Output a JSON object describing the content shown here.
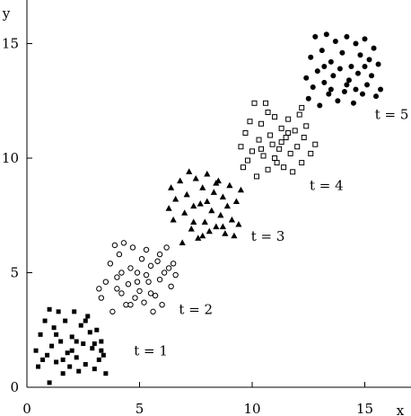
{
  "chart_data": {
    "type": "scatter",
    "xlabel": "x",
    "ylabel": "y",
    "xlim": [
      0,
      17
    ],
    "ylim": [
      0,
      17
    ],
    "xticks": [
      0,
      5,
      10,
      15
    ],
    "yticks": [
      0,
      5,
      10,
      15
    ],
    "tick_labels_x": [
      "0",
      "5",
      "10",
      "15"
    ],
    "tick_labels_y": [
      "0",
      "5",
      "10",
      "15"
    ],
    "grid": false,
    "series": [
      {
        "name": "t = 1",
        "marker": "filled-square",
        "label_position": [
          5.5,
          1.4
        ],
        "points": [
          [
            0.4,
            1.6
          ],
          [
            0.5,
            0.9
          ],
          [
            0.6,
            2.3
          ],
          [
            0.8,
            2.9
          ],
          [
            0.9,
            1.4
          ],
          [
            1.0,
            0.2
          ],
          [
            1.0,
            3.4
          ],
          [
            1.1,
            1.8
          ],
          [
            1.2,
            2.6
          ],
          [
            1.3,
            1.1
          ],
          [
            1.4,
            3.3
          ],
          [
            1.5,
            2.0
          ],
          [
            1.6,
            0.6
          ],
          [
            1.7,
            2.9
          ],
          [
            1.8,
            1.5
          ],
          [
            1.9,
            0.9
          ],
          [
            2.0,
            2.2
          ],
          [
            2.1,
            3.3
          ],
          [
            2.2,
            1.3
          ],
          [
            2.3,
            0.7
          ],
          [
            2.4,
            2.7
          ],
          [
            2.5,
            1.9
          ],
          [
            2.6,
            1.0
          ],
          [
            2.7,
            3.1
          ],
          [
            2.8,
            2.4
          ],
          [
            2.9,
            1.7
          ],
          [
            3.0,
            0.8
          ],
          [
            3.1,
            2.5
          ],
          [
            3.2,
            1.2
          ],
          [
            3.3,
            2.0
          ],
          [
            3.4,
            1.4
          ],
          [
            3.5,
            0.6
          ],
          [
            0.7,
            1.2
          ],
          [
            1.3,
            2.3
          ],
          [
            2.0,
            1.6
          ],
          [
            2.6,
            2.9
          ],
          [
            3.0,
            1.9
          ],
          [
            1.6,
            1.2
          ],
          [
            2.2,
            2.0
          ],
          [
            3.3,
            1.6
          ]
        ]
      },
      {
        "name": "t = 2",
        "marker": "open-circle",
        "label_position": [
          7.5,
          3.2
        ],
        "points": [
          [
            3.2,
            4.3
          ],
          [
            3.3,
            3.9
          ],
          [
            3.5,
            4.6
          ],
          [
            3.7,
            5.4
          ],
          [
            3.8,
            3.3
          ],
          [
            3.9,
            6.2
          ],
          [
            4.0,
            4.8
          ],
          [
            4.1,
            5.8
          ],
          [
            4.2,
            4.1
          ],
          [
            4.3,
            6.3
          ],
          [
            4.4,
            3.6
          ],
          [
            4.5,
            4.5
          ],
          [
            4.6,
            5.2
          ],
          [
            4.7,
            6.1
          ],
          [
            4.8,
            3.9
          ],
          [
            4.9,
            5.0
          ],
          [
            5.0,
            4.2
          ],
          [
            5.1,
            5.6
          ],
          [
            5.2,
            3.7
          ],
          [
            5.3,
            6.0
          ],
          [
            5.4,
            4.6
          ],
          [
            5.5,
            5.3
          ],
          [
            5.6,
            3.3
          ],
          [
            5.7,
            4.0
          ],
          [
            5.8,
            5.5
          ],
          [
            5.9,
            4.7
          ],
          [
            6.0,
            3.6
          ],
          [
            6.1,
            5.0
          ],
          [
            6.2,
            6.1
          ],
          [
            6.4,
            4.4
          ],
          [
            6.5,
            5.4
          ],
          [
            6.6,
            4.9
          ],
          [
            4.0,
            4.3
          ],
          [
            4.6,
            3.6
          ],
          [
            5.3,
            4.9
          ],
          [
            5.9,
            5.8
          ],
          [
            4.9,
            4.6
          ],
          [
            5.5,
            4.1
          ],
          [
            6.3,
            5.2
          ],
          [
            4.2,
            5.0
          ]
        ]
      },
      {
        "name": "t = 3",
        "marker": "filled-triangle",
        "label_position": [
          10.7,
          6.4
        ],
        "points": [
          [
            6.3,
            7.8
          ],
          [
            6.4,
            8.7
          ],
          [
            6.5,
            7.3
          ],
          [
            6.6,
            8.2
          ],
          [
            6.8,
            9.0
          ],
          [
            6.9,
            6.3
          ],
          [
            7.0,
            7.6
          ],
          [
            7.1,
            8.4
          ],
          [
            7.2,
            9.4
          ],
          [
            7.3,
            6.9
          ],
          [
            7.4,
            7.9
          ],
          [
            7.5,
            9.1
          ],
          [
            7.6,
            6.5
          ],
          [
            7.7,
            8.0
          ],
          [
            7.8,
            8.7
          ],
          [
            7.9,
            7.2
          ],
          [
            8.0,
            9.3
          ],
          [
            8.1,
            6.8
          ],
          [
            8.2,
            7.7
          ],
          [
            8.3,
            8.5
          ],
          [
            8.4,
            7.0
          ],
          [
            8.5,
            9.0
          ],
          [
            8.6,
            7.5
          ],
          [
            8.7,
            8.3
          ],
          [
            8.8,
            6.7
          ],
          [
            8.9,
            7.9
          ],
          [
            9.0,
            8.8
          ],
          [
            9.1,
            7.3
          ],
          [
            9.2,
            6.6
          ],
          [
            9.3,
            8.1
          ],
          [
            9.4,
            7.1
          ],
          [
            9.5,
            8.6
          ],
          [
            7.4,
            7.2
          ],
          [
            8.0,
            8.1
          ],
          [
            8.7,
            7.0
          ],
          [
            7.8,
            6.6
          ],
          [
            8.4,
            8.9
          ]
        ]
      },
      {
        "name": "t = 4",
        "marker": "open-square",
        "label_position": [
          13.3,
          8.6
        ],
        "points": [
          [
            9.5,
            10.5
          ],
          [
            9.6,
            9.6
          ],
          [
            9.7,
            11.1
          ],
          [
            9.8,
            9.9
          ],
          [
            9.9,
            11.6
          ],
          [
            10.0,
            10.3
          ],
          [
            10.1,
            12.4
          ],
          [
            10.2,
            9.2
          ],
          [
            10.3,
            10.8
          ],
          [
            10.4,
            11.5
          ],
          [
            10.5,
            10.1
          ],
          [
            10.6,
            12.4
          ],
          [
            10.7,
            9.5
          ],
          [
            10.8,
            11.0
          ],
          [
            10.9,
            10.6
          ],
          [
            11.0,
            11.8
          ],
          [
            11.1,
            9.8
          ],
          [
            11.2,
            10.4
          ],
          [
            11.3,
            11.3
          ],
          [
            11.4,
            9.6
          ],
          [
            11.5,
            10.9
          ],
          [
            11.6,
            11.7
          ],
          [
            11.7,
            10.2
          ],
          [
            11.8,
            9.4
          ],
          [
            11.9,
            11.2
          ],
          [
            12.0,
            10.5
          ],
          [
            12.1,
            11.9
          ],
          [
            12.2,
            9.8
          ],
          [
            12.3,
            10.9
          ],
          [
            12.4,
            11.4
          ],
          [
            12.6,
            10.2
          ],
          [
            12.8,
            10.6
          ],
          [
            10.4,
            10.4
          ],
          [
            11.0,
            10.0
          ],
          [
            11.6,
            11.1
          ],
          [
            12.2,
            12.2
          ],
          [
            10.7,
            12.0
          ],
          [
            11.3,
            10.7
          ]
        ]
      },
      {
        "name": "t = 5",
        "marker": "filled-circle",
        "label_position": [
          16.2,
          11.7
        ],
        "points": [
          [
            12.4,
            13.5
          ],
          [
            12.5,
            12.6
          ],
          [
            12.6,
            14.4
          ],
          [
            12.7,
            13.1
          ],
          [
            12.8,
            15.3
          ],
          [
            12.9,
            13.8
          ],
          [
            13.0,
            12.3
          ],
          [
            13.1,
            14.7
          ],
          [
            13.2,
            13.3
          ],
          [
            13.3,
            15.4
          ],
          [
            13.4,
            12.8
          ],
          [
            13.5,
            14.2
          ],
          [
            13.6,
            13.6
          ],
          [
            13.7,
            15.1
          ],
          [
            13.8,
            12.5
          ],
          [
            13.9,
            13.9
          ],
          [
            14.0,
            14.6
          ],
          [
            14.1,
            12.9
          ],
          [
            14.2,
            15.3
          ],
          [
            14.3,
            13.4
          ],
          [
            14.4,
            14.0
          ],
          [
            14.5,
            12.4
          ],
          [
            14.6,
            15.0
          ],
          [
            14.7,
            13.7
          ],
          [
            14.8,
            14.5
          ],
          [
            14.9,
            12.8
          ],
          [
            15.0,
            15.2
          ],
          [
            15.1,
            13.2
          ],
          [
            15.2,
            14.3
          ],
          [
            15.3,
            13.6
          ],
          [
            15.4,
            14.8
          ],
          [
            15.5,
            12.7
          ],
          [
            15.6,
            14.1
          ],
          [
            15.7,
            13.0
          ],
          [
            13.5,
            13.0
          ],
          [
            14.2,
            13.2
          ],
          [
            15.0,
            14.0
          ],
          [
            13.2,
            14.0
          ],
          [
            14.6,
            13.0
          ]
        ]
      }
    ]
  }
}
